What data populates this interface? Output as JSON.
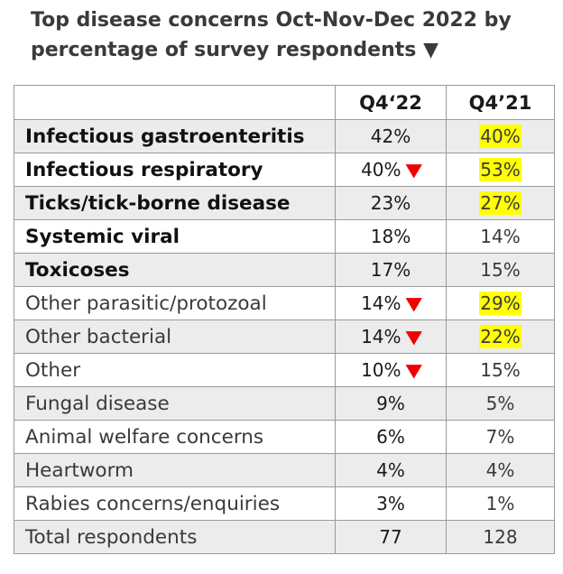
{
  "title_line1": "Top disease concerns Oct-Nov-Dec 2022 by",
  "title_line2": "percentage of survey respondents",
  "title_marker": "▼",
  "chart_data": {
    "type": "table",
    "columns": [
      "",
      "Q4‘22",
      "Q4’21"
    ],
    "rows": [
      {
        "label": "Infectious gastroenteritis",
        "q22": "42%",
        "q21": "40%",
        "bold": true,
        "shaded": true,
        "down": false,
        "highlight": true
      },
      {
        "label": "Infectious respiratory",
        "q22": "40%",
        "q21": "53%",
        "bold": true,
        "shaded": false,
        "down": true,
        "highlight": true
      },
      {
        "label": "Ticks/tick-borne disease",
        "q22": "23%",
        "q21": "27%",
        "bold": true,
        "shaded": true,
        "down": false,
        "highlight": true
      },
      {
        "label": "Systemic viral",
        "q22": "18%",
        "q21": "14%",
        "bold": true,
        "shaded": false,
        "down": false,
        "highlight": false
      },
      {
        "label": "Toxicoses",
        "q22": "17%",
        "q21": "15%",
        "bold": true,
        "shaded": true,
        "down": false,
        "highlight": false
      },
      {
        "label": "Other parasitic/protozoal",
        "q22": "14%",
        "q21": "29%",
        "bold": false,
        "shaded": false,
        "down": true,
        "highlight": true
      },
      {
        "label": "Other bacterial",
        "q22": "14%",
        "q21": "22%",
        "bold": false,
        "shaded": true,
        "down": true,
        "highlight": true
      },
      {
        "label": "Other",
        "q22": "10%",
        "q21": "15%",
        "bold": false,
        "shaded": false,
        "down": true,
        "highlight": false
      },
      {
        "label": "Fungal disease",
        "q22": "9%",
        "q21": "5%",
        "bold": false,
        "shaded": true,
        "down": false,
        "highlight": false
      },
      {
        "label": "Animal welfare concerns",
        "q22": "6%",
        "q21": "7%",
        "bold": false,
        "shaded": false,
        "down": false,
        "highlight": false
      },
      {
        "label": "Heartworm",
        "q22": "4%",
        "q21": "4%",
        "bold": false,
        "shaded": true,
        "down": false,
        "highlight": false
      },
      {
        "label": "Rabies concerns/enquiries",
        "q22": "3%",
        "q21": "1%",
        "bold": false,
        "shaded": false,
        "down": false,
        "highlight": false
      },
      {
        "label": "Total respondents",
        "q22": "77",
        "q21": "128",
        "bold": false,
        "shaded": true,
        "down": false,
        "highlight": false
      }
    ],
    "down_marker": "▼",
    "colors": {
      "down_marker": "#ee0000",
      "highlight": "#ffff00",
      "shaded_row": "#ececec"
    }
  }
}
